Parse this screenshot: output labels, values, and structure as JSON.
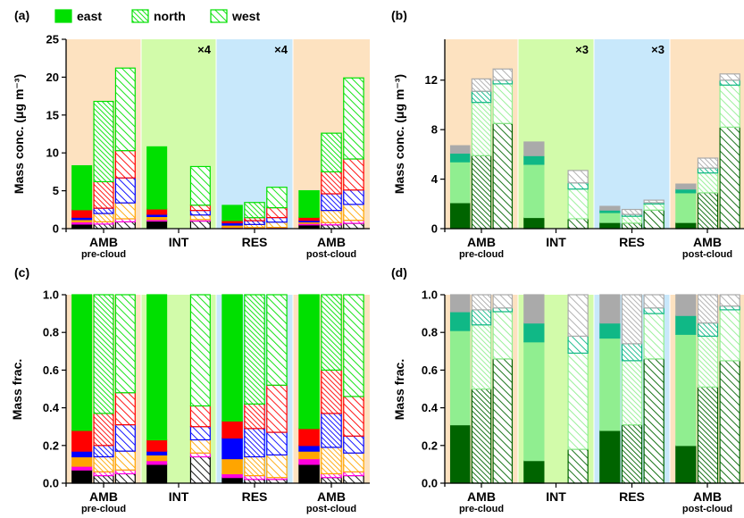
{
  "figure": {
    "legend": [
      {
        "name": "east",
        "style": "solid"
      },
      {
        "name": "north",
        "style": "dense-hatch"
      },
      {
        "name": "west",
        "style": "sparse-hatch"
      }
    ],
    "group_labels": [
      {
        "main": "AMB",
        "sub": "pre-cloud"
      },
      {
        "main": "INT",
        "sub": ""
      },
      {
        "main": "RES",
        "sub": ""
      },
      {
        "main": "AMB",
        "sub": "post-cloud"
      }
    ],
    "group_backgrounds": [
      "#fde2c0",
      "#d2fbaa",
      "#c8e8fb",
      "#fde2c0"
    ],
    "colors": {
      "black": "#000000",
      "magenta": "#ff00dd",
      "orange": "#ffa500",
      "blue": "#0000ff",
      "red": "#ff0000",
      "bright_green": "#00e000",
      "dark_green": "#006400",
      "light_green": "#90ee90",
      "teal": "#10b886",
      "gray": "#aaaaaa"
    }
  },
  "chart_data": [
    {
      "panel": "(a)",
      "type": "stacked-bar",
      "ylabel": "Mass conc. (μg m⁻³)",
      "ylim": [
        0,
        25
      ],
      "yticks": [
        0,
        5,
        10,
        15,
        20,
        25
      ],
      "group_multipliers": [
        "",
        "×4",
        "×4",
        ""
      ],
      "components": [
        {
          "key": "black",
          "color": "#000000"
        },
        {
          "key": "magenta",
          "color": "#ff00dd"
        },
        {
          "key": "orange",
          "color": "#ffa500"
        },
        {
          "key": "blue",
          "color": "#0000ff"
        },
        {
          "key": "red",
          "color": "#ff0000"
        },
        {
          "key": "green",
          "color": "#00e000"
        }
      ],
      "bars": [
        {
          "group": 0,
          "series": "east",
          "values": [
            0.6,
            0.3,
            0.3,
            0.3,
            1.0,
            5.8
          ]
        },
        {
          "group": 0,
          "series": "north",
          "values": [
            0.6,
            0.3,
            1.1,
            0.7,
            3.5,
            10.6
          ]
        },
        {
          "group": 0,
          "series": "west",
          "values": [
            0.9,
            0.4,
            2.1,
            3.3,
            3.6,
            10.9
          ]
        },
        {
          "group": 1,
          "series": "east",
          "values": [
            1.0,
            0.2,
            0.4,
            0.3,
            0.7,
            8.2
          ]
        },
        {
          "group": 1,
          "series": "west",
          "values": [
            1.0,
            0.2,
            0.6,
            0.6,
            0.7,
            5.1
          ]
        },
        {
          "group": 2,
          "series": "east",
          "values": [
            0.12,
            0.05,
            0.3,
            0.3,
            0.3,
            2.0
          ]
        },
        {
          "group": 2,
          "series": "north",
          "values": [
            0.1,
            0.05,
            0.4,
            0.5,
            0.4,
            2.0
          ]
        },
        {
          "group": 2,
          "series": "west",
          "values": [
            0.1,
            0.06,
            0.7,
            0.6,
            1.3,
            2.7
          ]
        },
        {
          "group": 3,
          "series": "east",
          "values": [
            0.5,
            0.2,
            0.2,
            0.2,
            0.4,
            3.5
          ]
        },
        {
          "group": 3,
          "series": "north",
          "values": [
            0.5,
            0.3,
            1.6,
            2.2,
            2.9,
            5.1
          ]
        },
        {
          "group": 3,
          "series": "west",
          "values": [
            0.7,
            0.4,
            2.1,
            1.9,
            4.1,
            10.7
          ]
        }
      ]
    },
    {
      "panel": "(b)",
      "type": "stacked-bar",
      "ylabel": "Mass conc. (μg m⁻³)",
      "ylim": [
        0,
        15.3
      ],
      "yticks": [
        0,
        4,
        8,
        12
      ],
      "group_multipliers": [
        "",
        "×3",
        "×3",
        ""
      ],
      "components": [
        {
          "key": "dark_green",
          "color": "#006400"
        },
        {
          "key": "light_green",
          "color": "#90ee90"
        },
        {
          "key": "teal",
          "color": "#10b886"
        },
        {
          "key": "gray",
          "color": "#aaaaaa"
        }
      ],
      "bars": [
        {
          "group": 0,
          "series": "east",
          "values": [
            2.1,
            3.3,
            0.7,
            0.6
          ]
        },
        {
          "group": 0,
          "series": "north",
          "values": [
            5.9,
            4.3,
            0.9,
            1.0
          ]
        },
        {
          "group": 0,
          "series": "west",
          "values": [
            8.5,
            3.2,
            0.3,
            0.9
          ]
        },
        {
          "group": 1,
          "series": "east",
          "values": [
            0.9,
            4.3,
            0.7,
            1.1
          ]
        },
        {
          "group": 1,
          "series": "west",
          "values": [
            0.8,
            2.4,
            0.5,
            1.0
          ]
        },
        {
          "group": 2,
          "series": "east",
          "values": [
            0.5,
            0.8,
            0.2,
            0.3
          ]
        },
        {
          "group": 2,
          "series": "north",
          "values": [
            0.45,
            0.55,
            0.15,
            0.4
          ]
        },
        {
          "group": 2,
          "series": "west",
          "values": [
            1.5,
            0.5,
            0.1,
            0.2
          ]
        },
        {
          "group": 3,
          "series": "east",
          "values": [
            0.5,
            2.4,
            0.3,
            0.4
          ]
        },
        {
          "group": 3,
          "series": "north",
          "values": [
            2.9,
            1.6,
            0.4,
            0.8
          ]
        },
        {
          "group": 3,
          "series": "west",
          "values": [
            8.2,
            3.4,
            0.4,
            0.5
          ]
        }
      ]
    },
    {
      "panel": "(c)",
      "type": "stacked-bar",
      "ylabel": "Mass frac.",
      "ylim": [
        0,
        1.0
      ],
      "yticks": [
        "0.0",
        "0.2",
        "0.4",
        "0.6",
        "0.8",
        "1.0"
      ],
      "group_multipliers": [
        "",
        "",
        "",
        ""
      ],
      "components": [
        {
          "key": "black",
          "color": "#000000"
        },
        {
          "key": "magenta",
          "color": "#ff00dd"
        },
        {
          "key": "orange",
          "color": "#ffa500"
        },
        {
          "key": "blue",
          "color": "#0000ff"
        },
        {
          "key": "red",
          "color": "#ff0000"
        },
        {
          "key": "green",
          "color": "#00e000"
        }
      ],
      "bars": [
        {
          "group": 0,
          "series": "east",
          "values": [
            0.07,
            0.02,
            0.05,
            0.03,
            0.11,
            0.72
          ]
        },
        {
          "group": 0,
          "series": "north",
          "values": [
            0.04,
            0.02,
            0.08,
            0.06,
            0.17,
            0.63
          ]
        },
        {
          "group": 0,
          "series": "west",
          "values": [
            0.05,
            0.02,
            0.1,
            0.14,
            0.17,
            0.52
          ]
        },
        {
          "group": 1,
          "series": "east",
          "values": [
            0.1,
            0.02,
            0.03,
            0.02,
            0.06,
            0.77
          ]
        },
        {
          "group": 1,
          "series": "west",
          "values": [
            0.14,
            0.02,
            0.07,
            0.07,
            0.11,
            0.59
          ]
        },
        {
          "group": 2,
          "series": "east",
          "values": [
            0.03,
            0.02,
            0.08,
            0.11,
            0.09,
            0.67
          ]
        },
        {
          "group": 2,
          "series": "north",
          "values": [
            0.02,
            0.02,
            0.1,
            0.15,
            0.13,
            0.58
          ]
        },
        {
          "group": 2,
          "series": "west",
          "values": [
            0.02,
            0.01,
            0.12,
            0.12,
            0.25,
            0.48
          ]
        },
        {
          "group": 3,
          "series": "east",
          "values": [
            0.1,
            0.03,
            0.04,
            0.03,
            0.09,
            0.71
          ]
        },
        {
          "group": 3,
          "series": "north",
          "values": [
            0.03,
            0.02,
            0.14,
            0.18,
            0.23,
            0.4
          ]
        },
        {
          "group": 3,
          "series": "west",
          "values": [
            0.04,
            0.02,
            0.1,
            0.09,
            0.21,
            0.54
          ]
        }
      ]
    },
    {
      "panel": "(d)",
      "type": "stacked-bar",
      "ylabel": "Mass frac.",
      "ylim": [
        0,
        1.0
      ],
      "yticks": [
        "0.0",
        "0.2",
        "0.4",
        "0.6",
        "0.8",
        "1.0"
      ],
      "group_multipliers": [
        "",
        "",
        "",
        ""
      ],
      "components": [
        {
          "key": "dark_green",
          "color": "#006400"
        },
        {
          "key": "light_green",
          "color": "#90ee90"
        },
        {
          "key": "teal",
          "color": "#10b886"
        },
        {
          "key": "gray",
          "color": "#aaaaaa"
        }
      ],
      "bars": [
        {
          "group": 0,
          "series": "east",
          "values": [
            0.31,
            0.5,
            0.1,
            0.09
          ]
        },
        {
          "group": 0,
          "series": "north",
          "values": [
            0.5,
            0.34,
            0.08,
            0.08
          ]
        },
        {
          "group": 0,
          "series": "west",
          "values": [
            0.66,
            0.25,
            0.02,
            0.07
          ]
        },
        {
          "group": 1,
          "series": "east",
          "values": [
            0.12,
            0.63,
            0.1,
            0.15
          ]
        },
        {
          "group": 1,
          "series": "west",
          "values": [
            0.18,
            0.51,
            0.09,
            0.22
          ]
        },
        {
          "group": 2,
          "series": "east",
          "values": [
            0.28,
            0.49,
            0.08,
            0.15
          ]
        },
        {
          "group": 2,
          "series": "north",
          "values": [
            0.31,
            0.34,
            0.09,
            0.26
          ]
        },
        {
          "group": 2,
          "series": "west",
          "values": [
            0.66,
            0.24,
            0.03,
            0.07
          ]
        },
        {
          "group": 3,
          "series": "east",
          "values": [
            0.2,
            0.59,
            0.1,
            0.11
          ]
        },
        {
          "group": 3,
          "series": "north",
          "values": [
            0.51,
            0.27,
            0.07,
            0.15
          ]
        },
        {
          "group": 3,
          "series": "west",
          "values": [
            0.65,
            0.27,
            0.02,
            0.06
          ]
        }
      ]
    }
  ]
}
